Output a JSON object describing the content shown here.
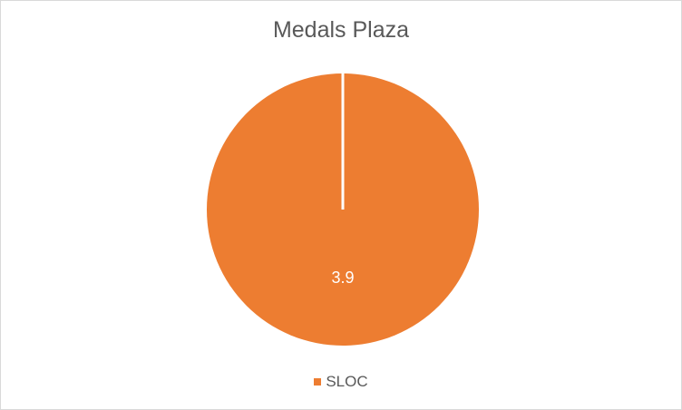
{
  "chart_data": {
    "type": "pie",
    "title": "Medals Plaza",
    "slices": [
      {
        "label": "SLOC",
        "value": 3.9,
        "data_label": "3.9",
        "color": "#ED7D31"
      }
    ],
    "legend": {
      "position": "bottom",
      "entries": [
        {
          "label": "SLOC",
          "color": "#ED7D31"
        }
      ]
    }
  }
}
